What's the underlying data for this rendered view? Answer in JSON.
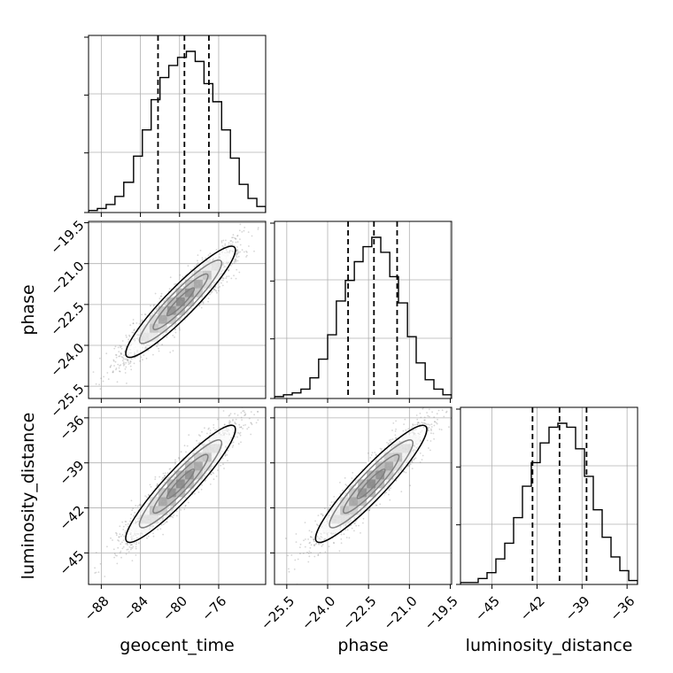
{
  "chart_data": {
    "type": "corner",
    "parameters": [
      "geocent_time",
      "phase",
      "luminosity_distance"
    ],
    "axis_labels": {
      "geocent_time": "geocent_time",
      "phase": "phase",
      "luminosity_distance": "luminosity_distance"
    },
    "ranges": {
      "geocent_time": [
        -89.3,
        -71.2
      ],
      "phase": [
        -25.95,
        -19.45
      ],
      "luminosity_distance": [
        -47.1,
        -35.3
      ]
    },
    "ticks": {
      "geocent_time": [
        -88,
        -84,
        -80,
        -76
      ],
      "phase": [
        -25.5,
        -24.0,
        -22.5,
        -21.0,
        -19.5
      ],
      "luminosity_distance": [
        -45,
        -42,
        -39,
        -36
      ]
    },
    "tick_labels": {
      "geocent_time": [
        "−88",
        "−84",
        "−80",
        "−76"
      ],
      "phase": [
        "−25.5",
        "−24.0",
        "−22.5",
        "−21.0",
        "−19.5"
      ],
      "luminosity_distance": [
        "−45",
        "−42",
        "−39",
        "−36"
      ]
    },
    "quantiles": {
      "geocent_time": [
        -82.2,
        -79.5,
        -77.0
      ],
      "phase": [
        -23.25,
        -22.3,
        -21.45
      ],
      "luminosity_distance": [
        -42.3,
        -40.5,
        -38.7
      ]
    },
    "histograms": {
      "geocent_time": {
        "edges": [
          -89.3,
          -88.4,
          -87.5,
          -86.6,
          -85.7,
          -84.7,
          -83.8,
          -82.9,
          -82.0,
          -81.1,
          -80.2,
          -79.3,
          -78.4,
          -77.5,
          -76.6,
          -75.7,
          -74.8,
          -73.9,
          -73.0,
          -72.1,
          -71.2
        ],
        "counts": [
          1,
          2,
          4,
          8,
          15,
          28,
          41,
          56,
          67,
          73,
          77,
          80,
          75,
          64,
          55,
          41,
          27,
          14,
          7,
          3
        ]
      },
      "phase": {
        "edges": [
          -25.95,
          -25.62,
          -25.3,
          -24.98,
          -24.65,
          -24.33,
          -24.0,
          -23.68,
          -23.35,
          -23.02,
          -22.7,
          -22.38,
          -22.05,
          -21.72,
          -21.4,
          -21.07,
          -20.75,
          -20.42,
          -20.1,
          -19.77,
          -19.45
        ],
        "counts": [
          1,
          2,
          3,
          5,
          11,
          21,
          34,
          52,
          63,
          73,
          81,
          86,
          78,
          65,
          51,
          33,
          19,
          10,
          5,
          2
        ]
      },
      "luminosity_distance": {
        "edges": [
          -47.1,
          -46.51,
          -45.92,
          -45.33,
          -44.74,
          -44.15,
          -43.56,
          -42.97,
          -42.38,
          -41.79,
          -41.2,
          -40.61,
          -40.02,
          -39.43,
          -38.84,
          -38.25,
          -37.66,
          -37.07,
          -36.48,
          -35.89,
          -35.3
        ],
        "counts": [
          1,
          1,
          3,
          6,
          13,
          21,
          34,
          50,
          62,
          72,
          80,
          82,
          80,
          69,
          55,
          38,
          24,
          14,
          7,
          2
        ]
      }
    },
    "pairs": [
      {
        "x": "geocent_time",
        "y": "phase",
        "mean": [
          -79.9,
          -22.4
        ],
        "std": [
          2.8,
          1.02
        ],
        "corr": 0.93
      },
      {
        "x": "geocent_time",
        "y": "luminosity_distance",
        "mean": [
          -79.9,
          -40.4
        ],
        "std": [
          2.8,
          1.95
        ],
        "corr": 0.93
      },
      {
        "x": "phase",
        "y": "luminosity_distance",
        "mean": [
          -22.4,
          -40.4
        ],
        "std": [
          1.02,
          1.95
        ],
        "corr": 0.93
      }
    ],
    "grid": true,
    "colors": {
      "line": "#000000",
      "grid": "#b0b0b0",
      "points": "#7f7f7f"
    }
  }
}
